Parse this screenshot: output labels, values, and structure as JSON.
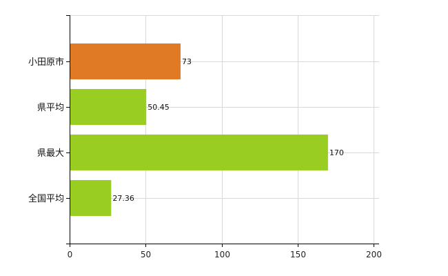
{
  "chart_data": {
    "type": "bar",
    "orientation": "horizontal",
    "categories": [
      "小田原市",
      "県平均",
      "県最大",
      "全国平均"
    ],
    "values": [
      73,
      50.45,
      170,
      27.36
    ],
    "value_labels": [
      "73",
      "50.45",
      "170",
      "27.36"
    ],
    "bar_colors": [
      "#e07a24",
      "#9acd22",
      "#9acd22",
      "#9acd22"
    ],
    "xlim": [
      0,
      200
    ],
    "xticks": [
      0,
      50,
      100,
      150,
      200
    ],
    "grid": true,
    "title": "",
    "xlabel": "",
    "ylabel": ""
  }
}
